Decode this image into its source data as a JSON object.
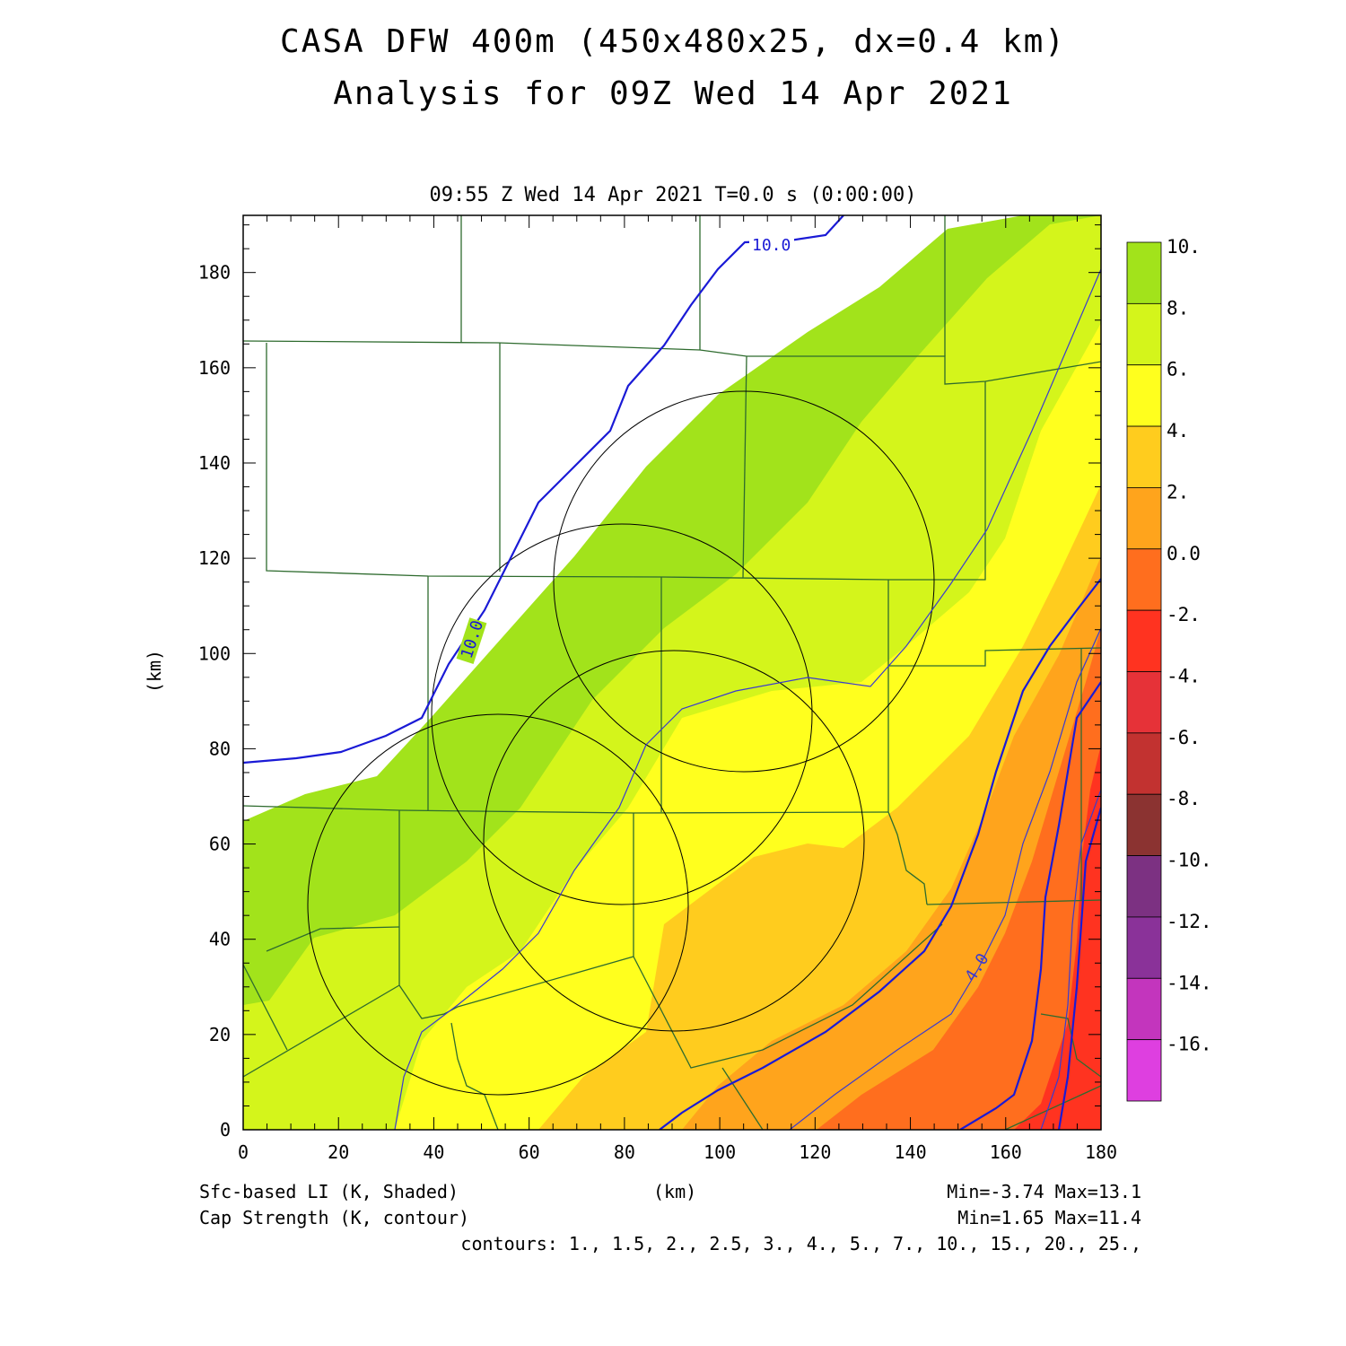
{
  "title_line1": "CASA DFW 400m (450x480x25, dx=0.4 km)",
  "title_line2": "Analysis for 09Z Wed 14 Apr 2021",
  "valid_time": "09:55 Z Wed 14 Apr 2021   T=0.0 s (0:00:00)",
  "x_axis_label": "(km)",
  "y_axis_label": "(km)",
  "x_ticks": [
    "0",
    "20",
    "40",
    "60",
    "80",
    "100",
    "120",
    "140",
    "160",
    "180"
  ],
  "y_ticks": [
    "0",
    "20",
    "40",
    "60",
    "80",
    "100",
    "120",
    "140",
    "160",
    "180"
  ],
  "colorbar": {
    "labels": [
      "10.",
      "8.",
      "6.",
      "4.",
      "2.",
      "0.0",
      "-2.",
      "-4.",
      "-6.",
      "-8.",
      "-10.",
      "-12.",
      "-14.",
      "-16."
    ],
    "colors": [
      "#a2e31b",
      "#d4f51b",
      "#ffff1e",
      "#ffcc1e",
      "#ffa41c",
      "#ff6e1e",
      "#ff3320",
      "#e63238",
      "#c23230",
      "#8b3331",
      "#7c3182",
      "#8a3299",
      "#c335bd",
      "#de3fe0"
    ]
  },
  "contour_labels": [
    "10.0",
    "10.0",
    "4.0"
  ],
  "footer": {
    "field1": "Sfc-based LI (K, Shaded)",
    "field2": "Cap Strength (K, contour)",
    "xunit": "(km)",
    "range1": "Min=-3.74 Max=13.1",
    "range2": "Min=1.65 Max=11.4",
    "contours": "contours: 1., 1.5, 2., 2.5, 3., 4., 5., 7., 10., 15., 20., 25.,"
  },
  "colors": {
    "county_lines": "#2e6b2e",
    "cap_contour": "#1a1ad6",
    "li_contour": "#3a3ad0",
    "radar_rings": "#000000"
  }
}
